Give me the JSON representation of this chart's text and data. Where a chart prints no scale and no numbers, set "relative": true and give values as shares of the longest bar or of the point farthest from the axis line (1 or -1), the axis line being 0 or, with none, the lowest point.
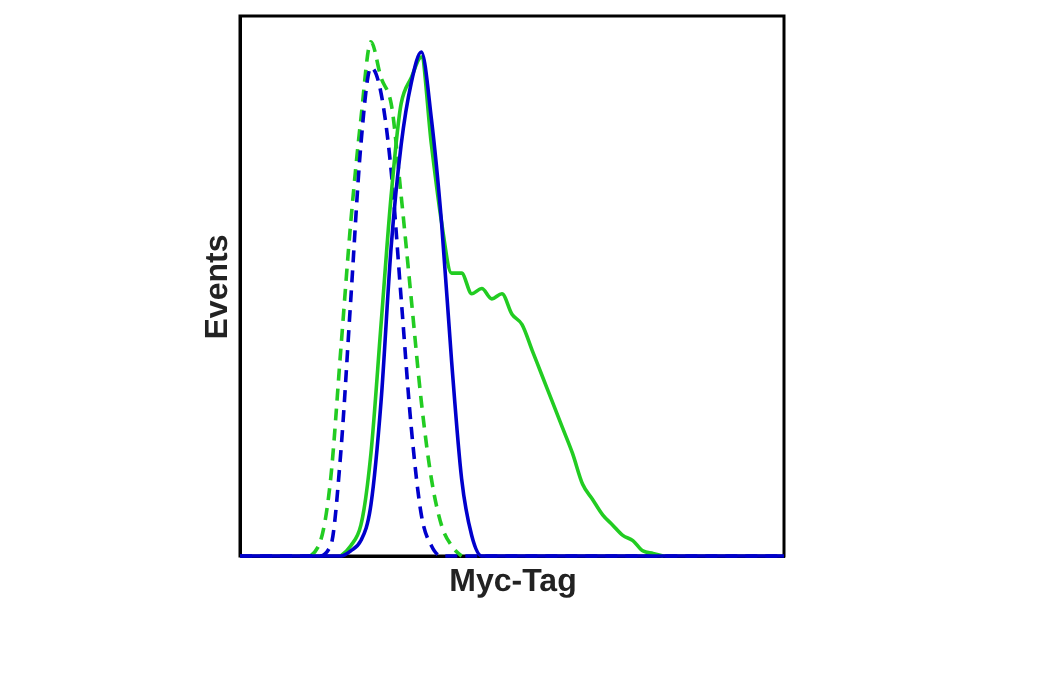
{
  "chart_data": {
    "type": "line",
    "relative": true,
    "xlabel": "Myc-Tag",
    "ylabel": "Events",
    "grid": false,
    "legend": false,
    "marker": "none",
    "categories": [
      null,
      null,
      null,
      null,
      null,
      null,
      null,
      null,
      null,
      null,
      null,
      null,
      null,
      null,
      null,
      null,
      null,
      null,
      null,
      null,
      null,
      null,
      null,
      null,
      null,
      null,
      null,
      null,
      null,
      null,
      null,
      null,
      null,
      null,
      null,
      null,
      null,
      null,
      null,
      null,
      null,
      null,
      null,
      null,
      null,
      null,
      null,
      null,
      null,
      null,
      null,
      null,
      null,
      null,
      null
    ],
    "series": [
      {
        "color": "#22cc22",
        "line_style": "dashed",
        "values": [
          null,
          null,
          null,
          null,
          null,
          null,
          null,
          0,
          0.03,
          0.15,
          0.4,
          0.65,
          0.85,
          1.0,
          0.93,
          0.88,
          0.7,
          0.5,
          0.3,
          0.15,
          0.06,
          0.02,
          0,
          null,
          null,
          null,
          null,
          null,
          null,
          null,
          null,
          null,
          null,
          null,
          null,
          null,
          null,
          null,
          null,
          null,
          null,
          null,
          null,
          null,
          null,
          null,
          null,
          null,
          null,
          null,
          null,
          null,
          null,
          null,
          null
        ]
      },
      {
        "color": "#0000cc",
        "line_style": "dashed",
        "values": [
          0,
          0,
          0,
          0,
          0,
          0,
          0,
          0,
          0,
          0.02,
          0.2,
          0.5,
          0.8,
          0.95,
          0.9,
          0.75,
          0.5,
          0.25,
          0.08,
          0.02,
          0,
          0,
          0,
          0,
          0,
          0,
          0,
          0,
          0,
          0,
          0,
          0,
          0,
          0,
          0,
          0,
          0,
          0,
          0,
          0,
          0,
          0,
          0,
          0,
          0,
          0,
          0,
          0,
          0,
          0,
          0,
          0,
          0,
          0,
          0
        ]
      },
      {
        "color": "#22cc22",
        "line_style": "solid",
        "values": [
          null,
          null,
          null,
          null,
          null,
          null,
          null,
          null,
          null,
          null,
          0,
          0.02,
          0.06,
          0.2,
          0.45,
          0.7,
          0.88,
          0.93,
          0.97,
          0.8,
          0.65,
          0.55,
          0.55,
          0.51,
          0.52,
          0.5,
          0.51,
          0.47,
          0.45,
          0.4,
          0.35,
          0.3,
          0.25,
          0.2,
          0.14,
          0.11,
          0.08,
          0.06,
          0.04,
          0.03,
          0.01,
          0.005,
          0,
          null,
          null,
          null,
          null,
          null,
          null,
          null,
          null,
          null,
          null,
          null,
          null
        ]
      },
      {
        "color": "#0000cc",
        "line_style": "solid",
        "values": [
          0,
          0,
          0,
          0,
          0,
          0,
          0,
          0,
          0,
          0,
          0,
          0.01,
          0.03,
          0.1,
          0.3,
          0.6,
          0.8,
          0.92,
          0.98,
          0.85,
          0.65,
          0.38,
          0.15,
          0.04,
          0,
          0,
          0,
          0,
          0,
          0,
          0,
          0,
          0,
          0,
          0,
          0,
          0,
          0,
          0,
          0,
          0,
          0,
          0,
          0,
          0,
          0,
          0,
          0,
          0,
          0,
          0,
          0,
          0,
          0,
          0
        ]
      }
    ]
  }
}
